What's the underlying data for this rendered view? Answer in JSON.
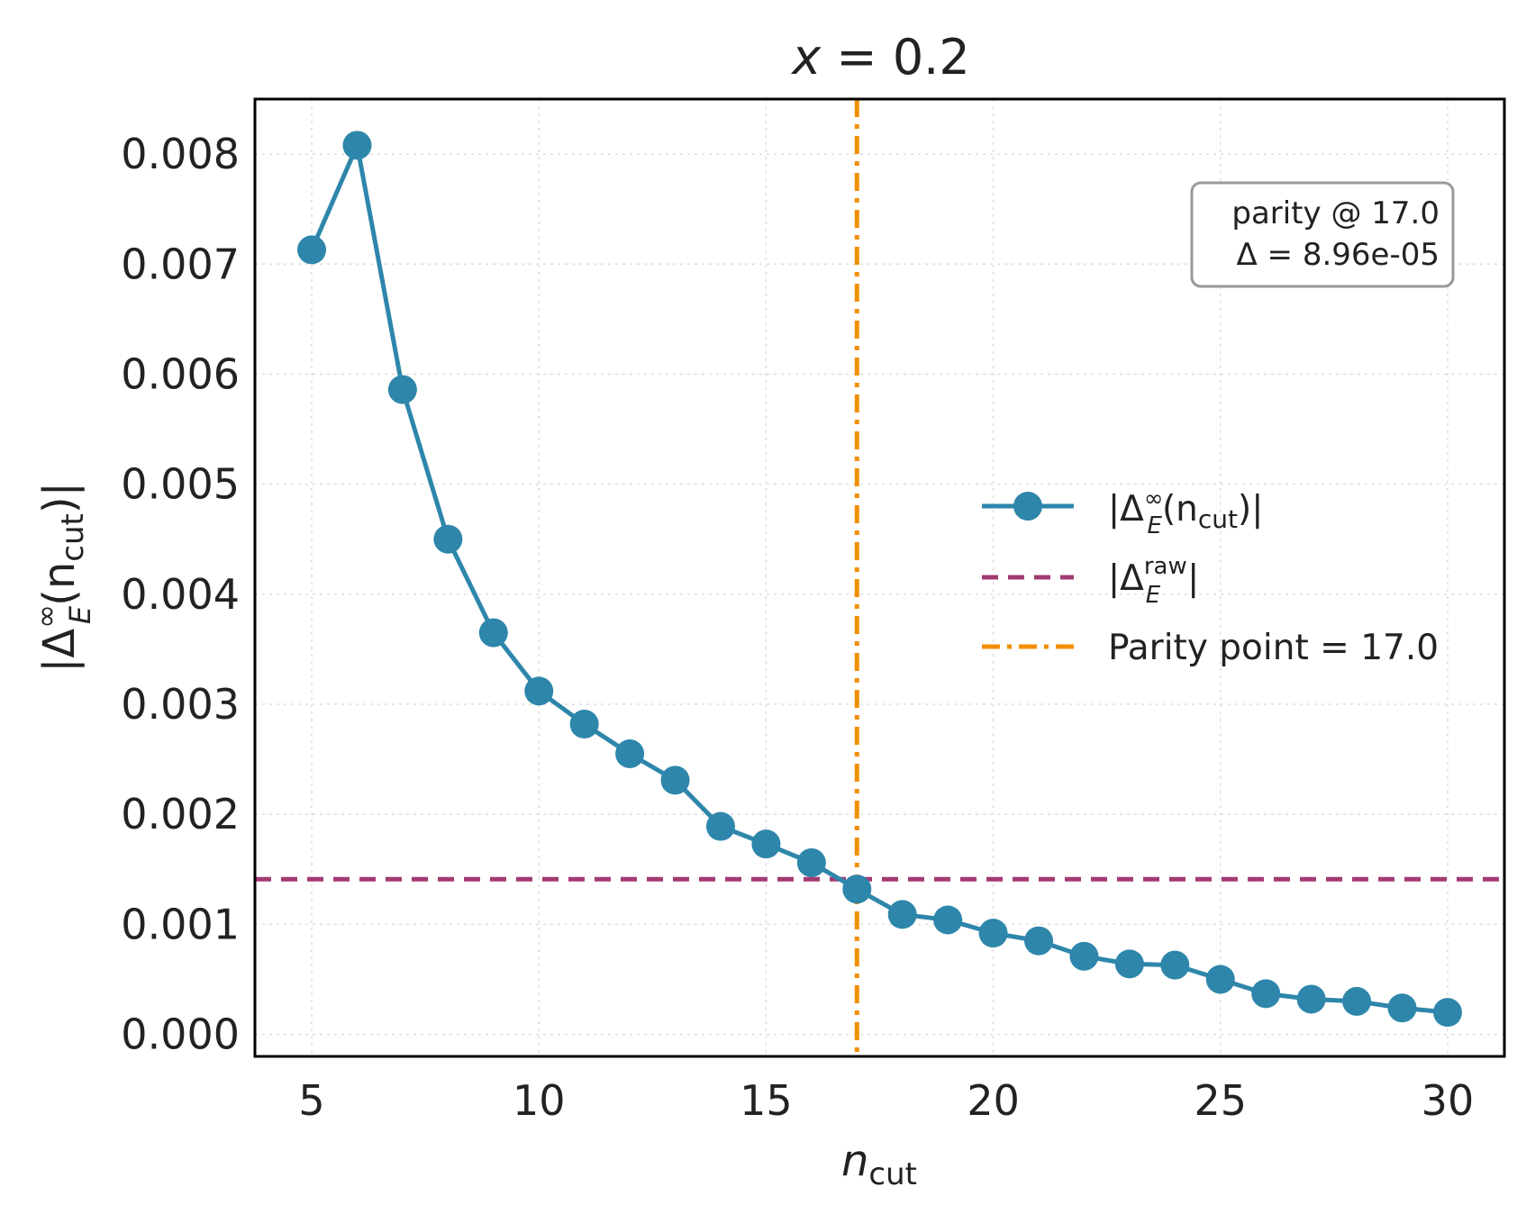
{
  "chart_data": {
    "type": "line",
    "title": {
      "var": "x",
      "eq": " = 0.2"
    },
    "xlabel": {
      "main": "n",
      "sub": "cut"
    },
    "ylabel": {
      "pre": "|Δ",
      "sup": "∞",
      "sub": "E",
      "post_open": "(n",
      "post_sub": "cut",
      "post_close": ")|"
    },
    "xlim": [
      3.75,
      31.25
    ],
    "ylim": [
      -0.0002,
      0.0085
    ],
    "x_ticks": [
      5,
      10,
      15,
      20,
      25,
      30
    ],
    "y_ticks": [
      0.0,
      0.001,
      0.002,
      0.003,
      0.004,
      0.005,
      0.006,
      0.007,
      0.008
    ],
    "y_tick_labels": [
      "0.000",
      "0.001",
      "0.002",
      "0.003",
      "0.004",
      "0.005",
      "0.006",
      "0.007",
      "0.008"
    ],
    "grid": true,
    "series": [
      {
        "name": "|Δ_E^∞(n_cut)|",
        "style": "line-marker",
        "color": "#2E86AB",
        "x": [
          5,
          6,
          7,
          8,
          9,
          10,
          11,
          12,
          13,
          14,
          15,
          16,
          17,
          18,
          19,
          20,
          21,
          22,
          23,
          24,
          25,
          26,
          27,
          28,
          29,
          30
        ],
        "y": [
          0.00713,
          0.00808,
          0.00586,
          0.0045,
          0.00365,
          0.00312,
          0.00282,
          0.00255,
          0.00231,
          0.00189,
          0.00173,
          0.00156,
          0.00132,
          0.00109,
          0.00104,
          0.00092,
          0.00085,
          0.00071,
          0.00064,
          0.00063,
          0.0005,
          0.00037,
          0.00032,
          0.0003,
          0.00024,
          0.0002
        ]
      }
    ],
    "hline": {
      "name": "|Δ_E^raw|",
      "y": 0.00141,
      "color": "#A23B72"
    },
    "vline": {
      "name": "Parity point = 17.0",
      "x": 17.0,
      "color": "#F18F01"
    },
    "legend": {
      "position": "center-right",
      "entries": [
        {
          "pre": "|Δ",
          "sup": "∞",
          "sub": "E",
          "post_open": "(n",
          "post_sub": "cut",
          "post_close": ")|"
        },
        {
          "pre": "|Δ",
          "sup": "raw",
          "sub": "E",
          "post_close": "|"
        },
        {
          "text": "Parity point = 17.0"
        }
      ]
    },
    "annotation": {
      "line1": "parity @ 17.0",
      "line2": "Δ = 8.96e-05",
      "position": "top-right"
    }
  }
}
